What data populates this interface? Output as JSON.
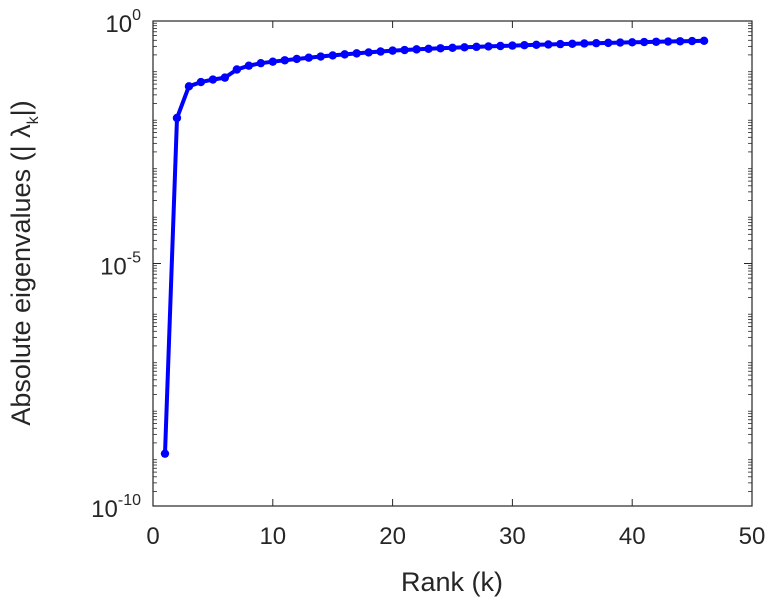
{
  "chart_data": {
    "type": "line",
    "xlabel": "Rank (k)",
    "ylabel": {
      "prefix": "Absolute eigenvalues (|",
      "symbol": "λ",
      "subscript": "k",
      "suffix": "|)"
    },
    "xlim": [
      0,
      50
    ],
    "ylim": [
      1e-10,
      1
    ],
    "yscale": "log",
    "xticks": [
      0,
      10,
      20,
      30,
      40,
      50
    ],
    "yticks": [
      {
        "value": 1e-10,
        "base": "10",
        "exp": "-10"
      },
      {
        "value": 1e-05,
        "base": "10",
        "exp": "-5"
      },
      {
        "value": 1,
        "base": "10",
        "exp": "0"
      }
    ],
    "grid": false,
    "legend": "none",
    "series": [
      {
        "color": "#0000ff",
        "marker": "circle",
        "x": [
          1,
          2,
          3,
          4,
          5,
          6,
          7,
          8,
          9,
          10,
          11,
          12,
          13,
          14,
          15,
          16,
          17,
          18,
          19,
          20,
          21,
          22,
          23,
          24,
          25,
          26,
          27,
          28,
          29,
          30,
          31,
          32,
          33,
          34,
          35,
          36,
          37,
          38,
          39,
          40,
          41,
          42,
          43,
          44,
          45,
          46
        ],
        "y": [
          1.2e-09,
          0.01,
          0.045,
          0.055,
          0.062,
          0.068,
          0.1,
          0.12,
          0.135,
          0.145,
          0.155,
          0.165,
          0.175,
          0.185,
          0.195,
          0.205,
          0.215,
          0.225,
          0.235,
          0.245,
          0.252,
          0.26,
          0.267,
          0.274,
          0.28,
          0.287,
          0.293,
          0.299,
          0.305,
          0.311,
          0.317,
          0.323,
          0.328,
          0.334,
          0.339,
          0.344,
          0.349,
          0.354,
          0.359,
          0.364,
          0.368,
          0.373,
          0.377,
          0.382,
          0.386,
          0.39
        ]
      }
    ]
  }
}
